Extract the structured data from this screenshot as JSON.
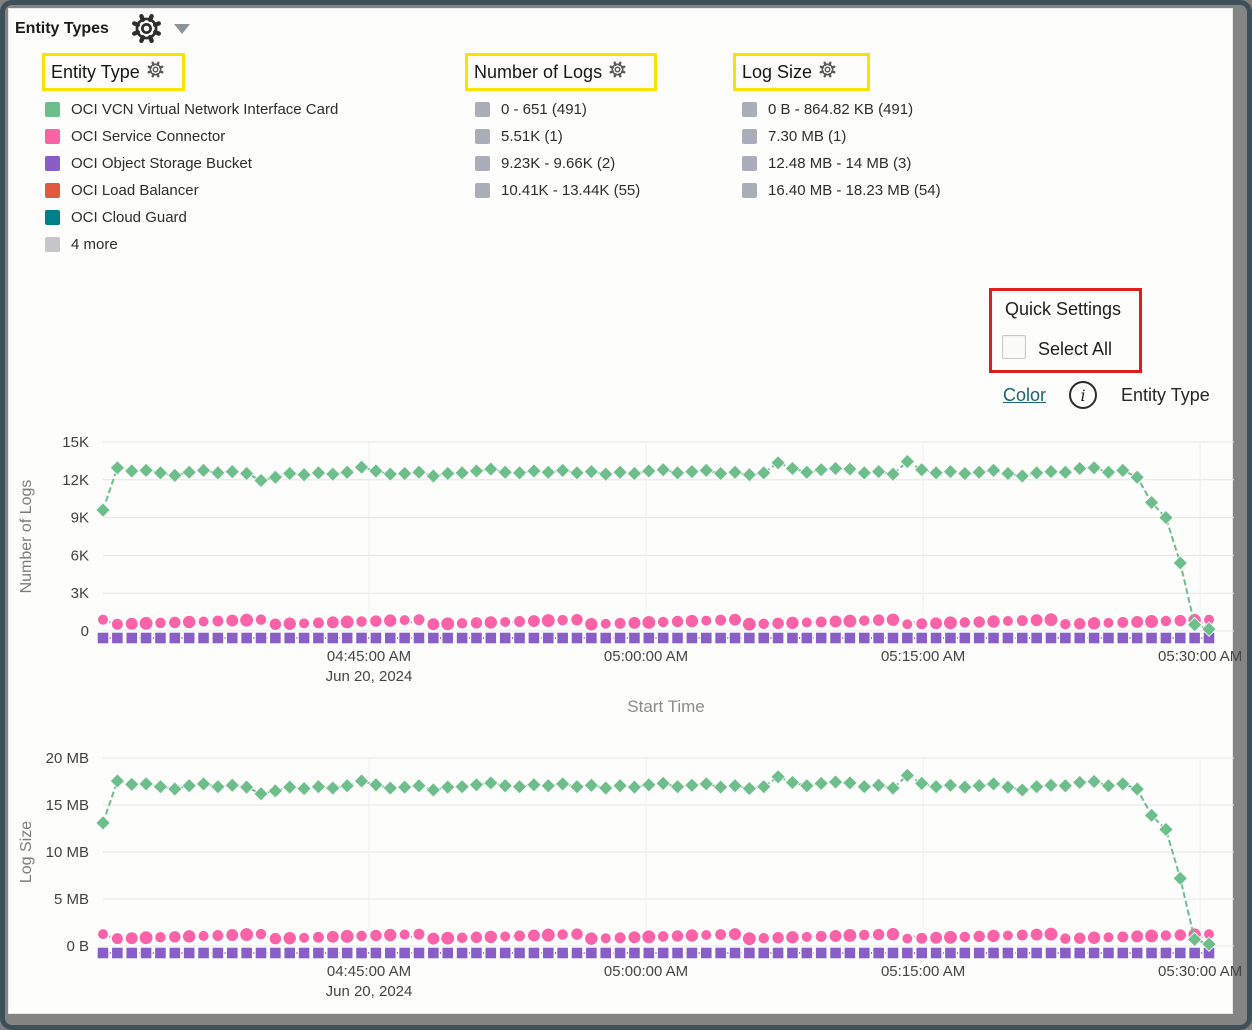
{
  "header": {
    "title": "Entity Types"
  },
  "icons": {
    "header_gear": "gear-icon",
    "header_caret": "chevron-down-icon",
    "filter_gear": "gear-icon",
    "info": "info-icon"
  },
  "annotations": {
    "highlight_color": "#f8e301",
    "callout_color": "#df1e1c"
  },
  "filters": {
    "entity_type": {
      "label": "Entity Type",
      "items": [
        {
          "label": "OCI VCN Virtual Network Interface Card",
          "color": "#6dbe8b"
        },
        {
          "label": "OCI Service Connector",
          "color": "#fb63a8"
        },
        {
          "label": "OCI Object Storage Bucket",
          "color": "#8a5ec7"
        },
        {
          "label": "OCI Load Balancer",
          "color": "#e05a40"
        },
        {
          "label": "OCI Cloud Guard",
          "color": "#008089"
        },
        {
          "label": "4 more",
          "color": "#c6c6ca"
        }
      ]
    },
    "number_of_logs": {
      "label": "Number of Logs",
      "items": [
        {
          "label": "0 - 651 (491)",
          "color": "#a9aeb8"
        },
        {
          "label": "5.51K (1)",
          "color": "#a9aeb8"
        },
        {
          "label": "9.23K - 9.66K (2)",
          "color": "#a9aeb8"
        },
        {
          "label": "10.41K - 13.44K (55)",
          "color": "#a9aeb8"
        }
      ]
    },
    "log_size": {
      "label": "Log Size",
      "items": [
        {
          "label": "0 B - 864.82 KB (491)",
          "color": "#a9aeb8"
        },
        {
          "label": "7.30 MB (1)",
          "color": "#a9aeb8"
        },
        {
          "label": "12.48 MB - 14 MB (3)",
          "color": "#a9aeb8"
        },
        {
          "label": "16.40 MB - 18.23 MB (54)",
          "color": "#a9aeb8"
        }
      ]
    }
  },
  "quick_settings": {
    "title": "Quick Settings",
    "select_all_label": "Select All",
    "checked": false
  },
  "color_row": {
    "link": "Color",
    "value": "Entity Type"
  },
  "chart_data": [
    {
      "type": "line",
      "ylabel": "Number of Logs",
      "xlabel": "Start Time",
      "y_unit": "K",
      "ylim": [
        0,
        15
      ],
      "ytick_values": [
        0,
        3,
        6,
        9,
        12,
        15
      ],
      "ytick_labels": [
        "0",
        "3K",
        "6K",
        "9K",
        "12K",
        "15K"
      ],
      "xticks": [
        {
          "label": "04:45:00 AM",
          "sublabel": "Jun 20, 2024",
          "pos": 0.2405
        },
        {
          "label": "05:00:00 AM",
          "pos": 0.491
        },
        {
          "label": "05:15:00 AM",
          "pos": 0.7415
        },
        {
          "label": "05:30:00 AM",
          "pos": 0.992
        }
      ],
      "series": [
        {
          "name": "OCI Object Storage Bucket",
          "color": "#8a5ec7",
          "marker": "square",
          "constant_value": 0,
          "count": 78
        },
        {
          "name": "OCI Service Connector",
          "color": "#fb63a8",
          "marker": "circle",
          "constant_value": 0.7,
          "count": 78
        },
        {
          "name": "OCI VCN Virtual Network Interface Card",
          "color": "#6dbe8b",
          "marker": "diamond",
          "values": [
            9.6,
            12.95,
            12.7,
            12.75,
            12.55,
            12.35,
            12.6,
            12.75,
            12.55,
            12.65,
            12.5,
            11.95,
            12.2,
            12.5,
            12.4,
            12.55,
            12.45,
            12.6,
            13.0,
            12.7,
            12.45,
            12.5,
            12.6,
            12.3,
            12.5,
            12.55,
            12.7,
            12.85,
            12.6,
            12.55,
            12.7,
            12.6,
            12.75,
            12.55,
            12.65,
            12.45,
            12.6,
            12.5,
            12.7,
            12.8,
            12.55,
            12.65,
            12.75,
            12.5,
            12.6,
            12.4,
            12.55,
            13.35,
            12.9,
            12.6,
            12.8,
            12.9,
            12.85,
            12.55,
            12.65,
            12.45,
            13.45,
            12.8,
            12.55,
            12.65,
            12.5,
            12.6,
            12.75,
            12.5,
            12.3,
            12.55,
            12.65,
            12.6,
            12.9,
            12.95,
            12.6,
            12.75,
            12.2,
            10.2,
            9.0,
            5.4,
            0.5,
            0.15
          ]
        }
      ]
    },
    {
      "type": "line",
      "ylabel": "Log Size",
      "xlabel": "",
      "y_unit": "MB",
      "ylim": [
        0,
        20
      ],
      "ytick_values": [
        0,
        5,
        10,
        15,
        20
      ],
      "ytick_labels": [
        "0 B",
        "5 MB",
        "10 MB",
        "15 MB",
        "20 MB"
      ],
      "xticks": [
        {
          "label": "04:45:00 AM",
          "sublabel": "Jun 20, 2024",
          "pos": 0.2405
        },
        {
          "label": "05:00:00 AM",
          "pos": 0.491
        },
        {
          "label": "05:15:00 AM",
          "pos": 0.7415
        },
        {
          "label": "05:30:00 AM",
          "pos": 0.992
        }
      ],
      "series": [
        {
          "name": "OCI Object Storage Bucket",
          "color": "#8a5ec7",
          "marker": "square",
          "constant_value": 0,
          "count": 78
        },
        {
          "name": "OCI Service Connector",
          "color": "#fb63a8",
          "marker": "circle",
          "constant_value": 1.0,
          "count": 78
        },
        {
          "name": "OCI VCN Virtual Network Interface Card",
          "color": "#6dbe8b",
          "marker": "diamond",
          "values": [
            13.1,
            17.55,
            17.2,
            17.25,
            16.95,
            16.7,
            17.05,
            17.25,
            16.95,
            17.1,
            16.9,
            16.2,
            16.5,
            16.9,
            16.75,
            16.95,
            16.8,
            17.05,
            17.55,
            17.15,
            16.8,
            16.9,
            17.05,
            16.6,
            16.9,
            16.95,
            17.15,
            17.35,
            17.05,
            16.95,
            17.15,
            17.05,
            17.25,
            16.95,
            17.1,
            16.8,
            17.05,
            16.9,
            17.15,
            17.3,
            16.95,
            17.1,
            17.25,
            16.9,
            17.05,
            16.75,
            16.95,
            18.0,
            17.4,
            17.05,
            17.3,
            17.45,
            17.35,
            16.95,
            17.1,
            16.8,
            18.15,
            17.3,
            16.95,
            17.1,
            16.9,
            17.05,
            17.25,
            16.9,
            16.6,
            16.95,
            17.1,
            17.05,
            17.4,
            17.5,
            17.05,
            17.25,
            16.7,
            13.9,
            12.4,
            7.2,
            0.7,
            0.2
          ]
        }
      ]
    }
  ]
}
